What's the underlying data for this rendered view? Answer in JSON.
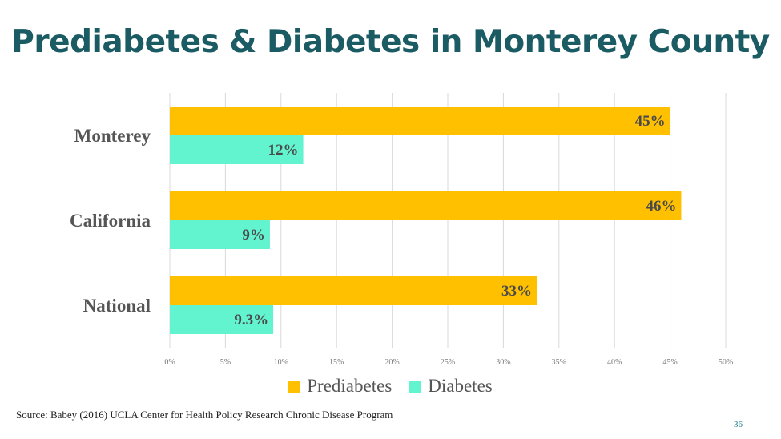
{
  "page": {
    "title": "Prediabetes & Diabetes in Monterey County",
    "source": "Source: Babey (2016) UCLA Center for Health Policy Research Chronic Disease Program",
    "page_number": "36"
  },
  "colors": {
    "prediabetes": "#ffc000",
    "diabetes": "#62f3cf",
    "title": "#1b5b63",
    "gridline": "#d9d9d9"
  },
  "chart_data": {
    "type": "bar",
    "orientation": "horizontal",
    "categories": [
      "Monterey",
      "California",
      "National"
    ],
    "series": [
      {
        "name": "Prediabetes",
        "values": [
          45,
          46,
          33
        ],
        "labels": [
          "45%",
          "46%",
          "33%"
        ]
      },
      {
        "name": "Diabetes",
        "values": [
          12,
          9,
          9.3
        ],
        "labels": [
          "12%",
          "9%",
          "9.3%"
        ]
      }
    ],
    "xlim": [
      0,
      50
    ],
    "xticks": [
      0,
      5,
      10,
      15,
      20,
      25,
      30,
      35,
      40,
      45,
      50
    ],
    "xtick_labels": [
      "0%",
      "5%",
      "10%",
      "15%",
      "20%",
      "25%",
      "30%",
      "35%",
      "40%",
      "45%",
      "50%"
    ],
    "grid": true,
    "legend_position": "bottom"
  }
}
